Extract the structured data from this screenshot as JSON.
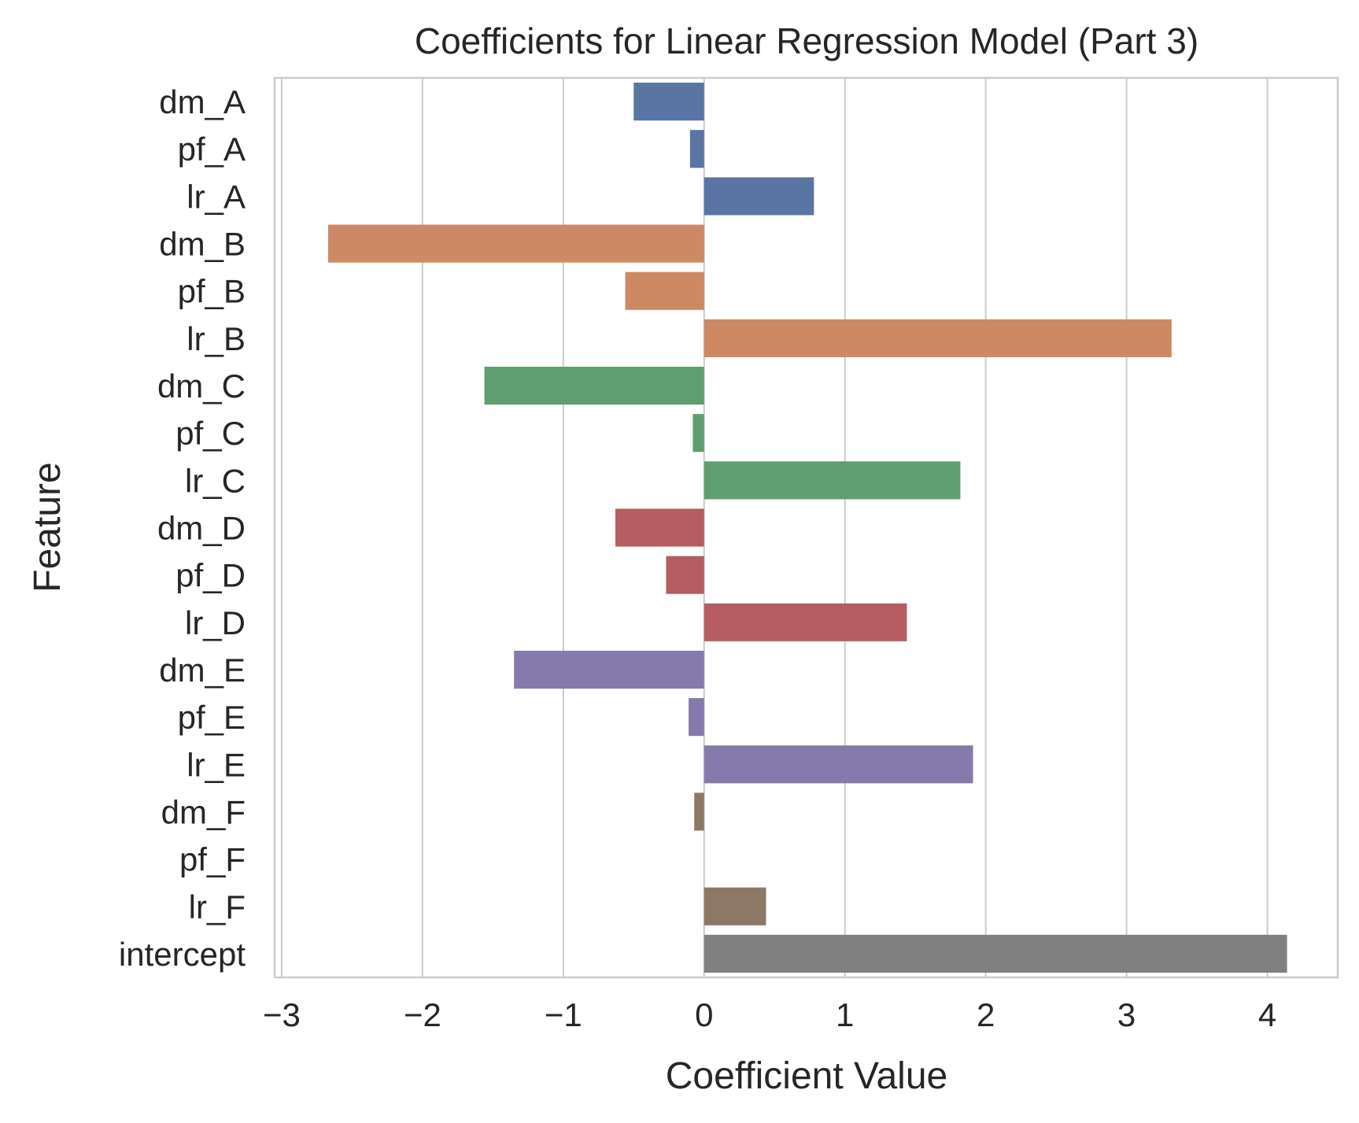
{
  "chart_data": {
    "type": "bar",
    "orientation": "horizontal",
    "title": "Coefficients for Linear Regression Model (Part 3)",
    "xlabel": "Coefficient Value",
    "ylabel": "Feature",
    "xlim": [
      -3.05,
      4.5
    ],
    "xticks": [
      -3,
      -2,
      -1,
      0,
      1,
      2,
      3,
      4
    ],
    "xtick_labels": [
      "−3",
      "−2",
      "−1",
      "0",
      "1",
      "2",
      "3",
      "4"
    ],
    "grid": true,
    "legend": "none",
    "categories": [
      "dm_A",
      "pf_A",
      "lr_A",
      "dm_B",
      "pf_B",
      "lr_B",
      "dm_C",
      "pf_C",
      "lr_C",
      "dm_D",
      "pf_D",
      "lr_D",
      "dm_E",
      "pf_E",
      "lr_E",
      "dm_F",
      "pf_F",
      "lr_F",
      "intercept"
    ],
    "values": [
      -0.5,
      -0.1,
      0.78,
      -2.67,
      -0.56,
      3.32,
      -1.56,
      -0.08,
      1.82,
      -0.63,
      -0.27,
      1.44,
      -1.35,
      -0.11,
      1.91,
      -0.07,
      0.0,
      0.44,
      4.14
    ],
    "colors": [
      "#5875a4",
      "#5875a4",
      "#5875a4",
      "#cc8963",
      "#cc8963",
      "#cc8963",
      "#5f9e6e",
      "#5f9e6e",
      "#5f9e6e",
      "#b55d60",
      "#b55d60",
      "#b55d60",
      "#857aab",
      "#857aab",
      "#857aab",
      "#8d7866",
      "#8d7866",
      "#8d7866",
      "#808080"
    ]
  }
}
